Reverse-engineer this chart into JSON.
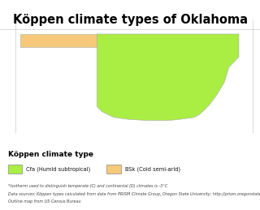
{
  "title": "Köppen climate types of Oklahoma",
  "title_fontsize": 10.5,
  "bg_color": "#ffffff",
  "legend_title": "Köppen climate type",
  "legend_items": [
    {
      "label": "Cfa (Humid subtropical)",
      "color": "#aaee44"
    },
    {
      "label": "BSk (Cold semi-arid)",
      "color": "#f5c87a"
    }
  ],
  "footnote1": "*Isotherm used to distinguish temperate (C) and continental (D) climates is -3°C",
  "footnote2": "Data sources: Köppen types calculated from data from PRISM Climate Group, Oregon State University; http://prism.oregonstate.edu;",
  "footnote3": "Outline map from US Census Bureau",
  "oklahoma_main_color": "#aaee44",
  "oklahoma_panhandle_color": "#f5c87a",
  "border_color": "#aaaaaa",
  "border_width": 0.4,
  "gray_line_color": "#cccccc"
}
